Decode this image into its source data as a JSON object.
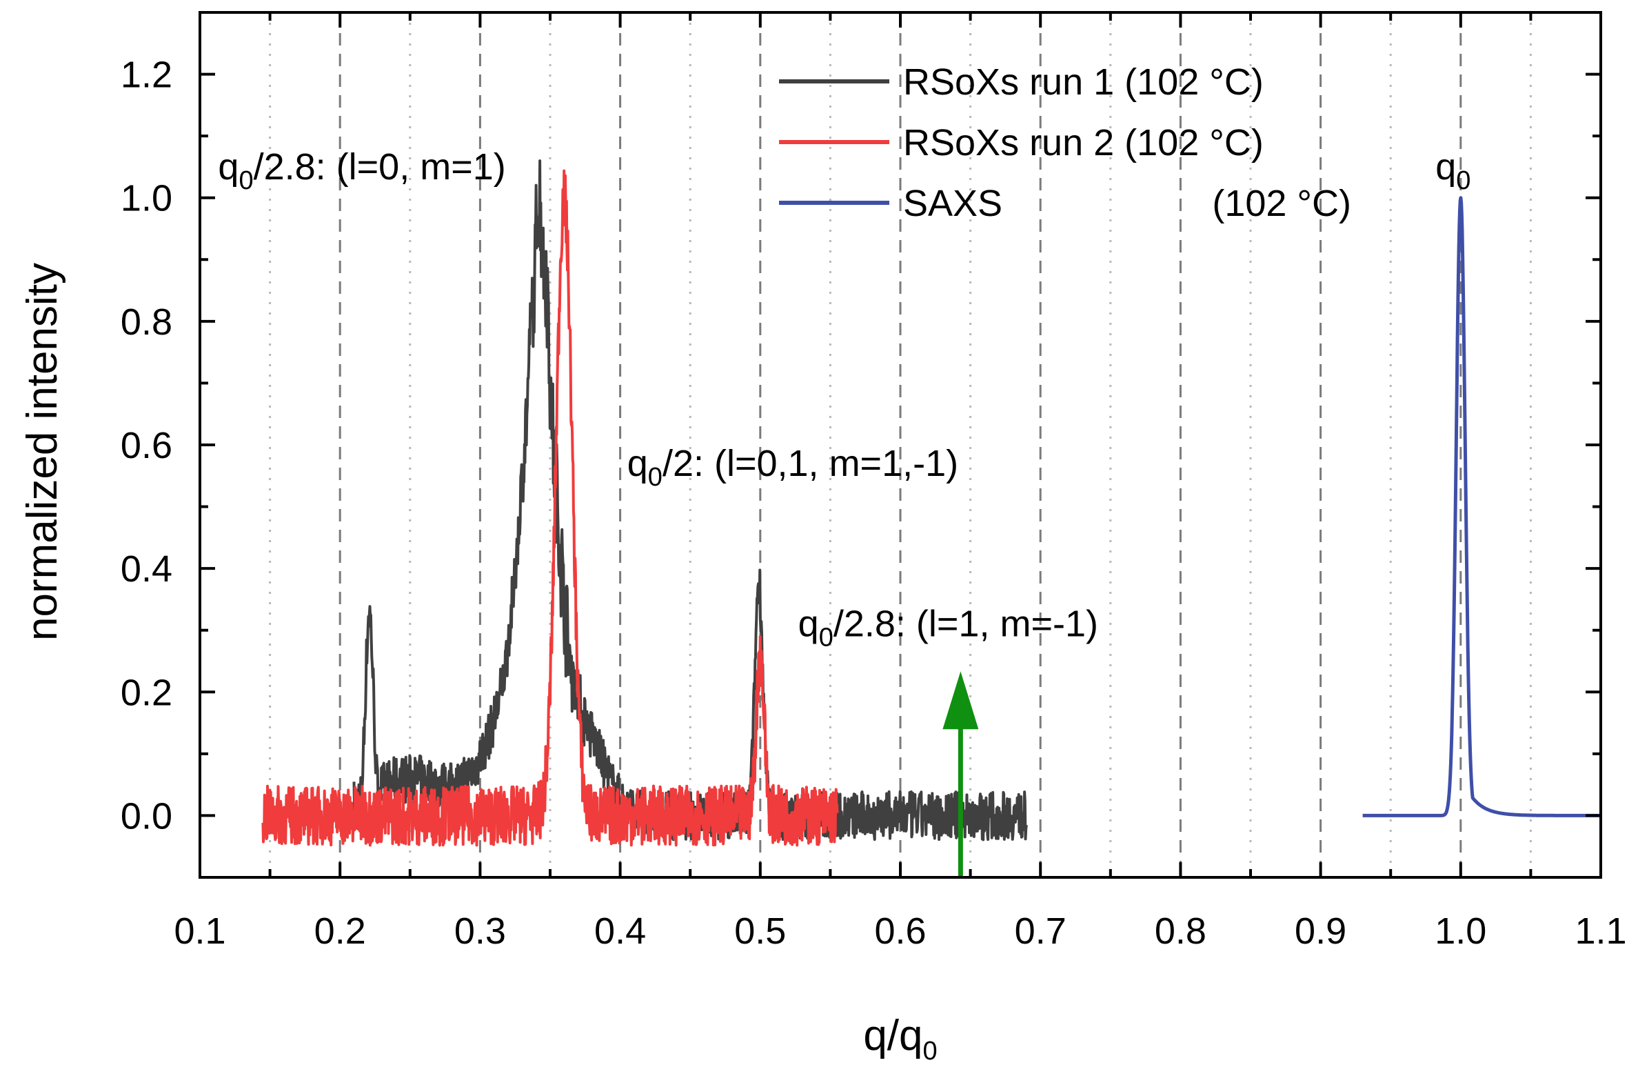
{
  "chart_data": {
    "type": "line",
    "xlabel_main": "q/q",
    "xlabel_sub": "0",
    "ylabel": "normalized intensity",
    "xlim": [
      0.1,
      1.1
    ],
    "ylim": [
      -0.1,
      1.3
    ],
    "x_ticks": [
      "0.1",
      "0.2",
      "0.3",
      "0.4",
      "0.5",
      "0.6",
      "0.7",
      "0.8",
      "0.9",
      "1.0",
      "1.1"
    ],
    "y_ticks": [
      "0.0",
      "0.2",
      "0.4",
      "0.6",
      "0.8",
      "1.0",
      "1.2"
    ],
    "grid": {
      "major_dashed_x": [
        0.2,
        0.3,
        0.4,
        0.5,
        0.6,
        0.7,
        0.8,
        0.9,
        1.0
      ],
      "minor_dotted_x": [
        0.15,
        0.25,
        0.35,
        0.45,
        0.55,
        0.65,
        0.75,
        0.85,
        0.95,
        1.05
      ]
    },
    "legend": {
      "position": "top-center",
      "entries": [
        {
          "label": "RSoXs run 1 (102 °C)",
          "color": "#404040"
        },
        {
          "label": "RSoXs run 2 (102 °C)",
          "color": "#f03c3c"
        },
        {
          "label": "SAXS",
          "extra": "(102 °C)",
          "color": "#3f4fa8"
        }
      ]
    },
    "series": [
      {
        "name": "RSoXs run 1 (102 °C)",
        "color": "#404040",
        "x_range": [
          0.21,
          0.69
        ],
        "baseline_noise": 0.03,
        "peaks": [
          {
            "x": 0.342,
            "y": 1.0
          },
          {
            "x": 0.346,
            "y": 0.9
          },
          {
            "x": 0.338,
            "y": 0.83
          },
          {
            "x": 0.499,
            "y": 0.38
          },
          {
            "x": 0.221,
            "y": 0.33
          },
          {
            "x": 0.362,
            "y": 0.3
          }
        ]
      },
      {
        "name": "RSoXs run 2 (102 °C)",
        "color": "#f03c3c",
        "x_range": [
          0.145,
          0.555
        ],
        "baseline_noise": 0.03,
        "peaks": [
          {
            "x": 0.36,
            "y": 1.0
          },
          {
            "x": 0.5,
            "y": 0.26
          }
        ]
      },
      {
        "name": "SAXS (102 °C)",
        "color": "#3f4fa8",
        "x_range": [
          0.93,
          1.1
        ],
        "baseline_noise": 0.0,
        "peaks": [
          {
            "x": 1.0,
            "y": 1.0
          }
        ]
      }
    ],
    "annotations": [
      {
        "id": "ann-q0-2-8-l0",
        "main": "q",
        "sub": "0",
        "rest": "/2.8: (l=0, m=1)",
        "x": 0.113,
        "y": 1.03,
        "color": "#000000"
      },
      {
        "id": "ann-q0-2",
        "main": "q",
        "sub": "0",
        "rest": "/2: (l=0,1, m=1,-1)",
        "x": 0.405,
        "y": 0.55,
        "color": "#000000"
      },
      {
        "id": "ann-q0-2-8-l1",
        "main": "q",
        "sub": "0",
        "rest": "/2.8: (l=1, m=-1)",
        "x": 0.527,
        "y": 0.29,
        "color": "#109010"
      },
      {
        "id": "ann-q0",
        "main": "q",
        "sub": "0",
        "rest": "",
        "x": 0.982,
        "y": 1.03,
        "color": "#000000"
      }
    ],
    "arrow": {
      "x": 0.643,
      "y_from": -0.1,
      "y_to": 0.2,
      "color": "#109010"
    }
  }
}
